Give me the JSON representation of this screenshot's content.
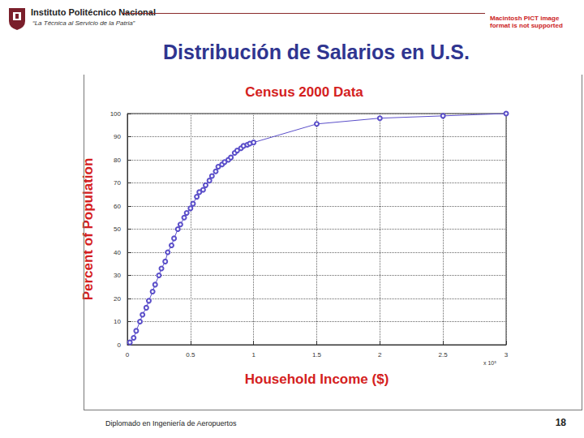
{
  "slide": {
    "institution": "Instituto Politécnico Nacional",
    "motto": "“La Técnica al Servicio de la Patria”",
    "notice": "Macintosh PICT image format is not supported",
    "heading": "Distribución de Salarios en U.S.",
    "footer": "Diplomado en Ingeniería de Aeropuertos",
    "page_number": 18
  },
  "chart_data": {
    "type": "line",
    "title": "Census 2000 Data",
    "x_label": "Household Income ($)",
    "y_label": "Percent of Population",
    "annotations": [
      "x 10⁵"
    ],
    "x": [
      0.02,
      0.05,
      0.07,
      0.1,
      0.12,
      0.15,
      0.17,
      0.2,
      0.22,
      0.25,
      0.27,
      0.3,
      0.32,
      0.35,
      0.37,
      0.4,
      0.42,
      0.45,
      0.47,
      0.5,
      0.52,
      0.55,
      0.57,
      0.6,
      0.62,
      0.65,
      0.67,
      0.7,
      0.72,
      0.75,
      0.77,
      0.8,
      0.82,
      0.85,
      0.87,
      0.9,
      0.92,
      0.95,
      0.97,
      1.0,
      1.5,
      2.0,
      2.5,
      3.0
    ],
    "values": [
      1,
      3,
      6,
      10,
      13,
      16,
      19,
      23,
      26,
      30,
      33,
      36,
      40,
      43,
      46,
      50,
      52,
      55,
      57,
      59,
      61,
      64,
      66,
      67,
      69,
      71,
      73,
      75,
      77,
      78,
      79,
      80,
      81,
      83,
      84,
      85,
      86,
      86.5,
      87,
      87.5,
      95.5,
      98,
      99,
      100
    ],
    "color": "#5b4fc9",
    "marker": "circle",
    "xlim": [
      0,
      3
    ],
    "xticks": [
      0,
      0.5,
      1,
      1.5,
      2,
      2.5,
      3
    ],
    "ylim": [
      0,
      100
    ],
    "yticks": [
      0,
      10,
      20,
      30,
      40,
      50,
      60,
      70,
      80,
      90,
      100
    ],
    "grid": true
  }
}
